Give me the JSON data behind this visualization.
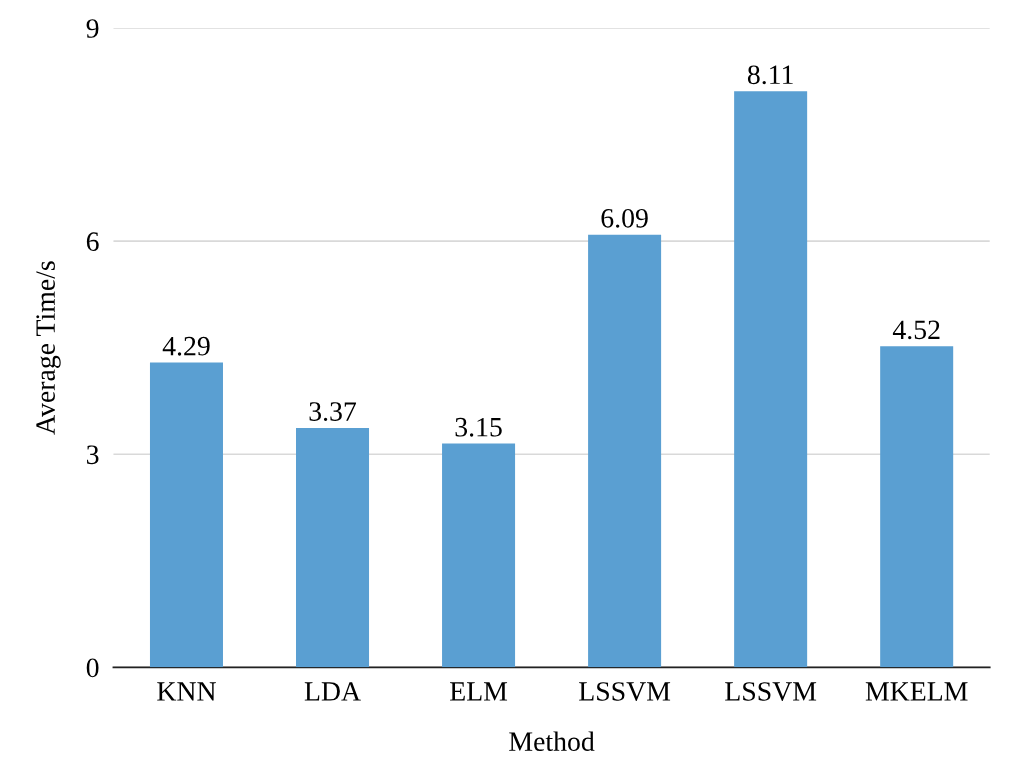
{
  "chart_data": {
    "type": "bar",
    "xlabel": "Method",
    "ylabel": "Average Time/s",
    "categories": [
      "KNN",
      "LDA",
      "ELM",
      "LSSVM",
      "LSSVM",
      "MKELM"
    ],
    "values": [
      4.29,
      3.37,
      3.15,
      6.09,
      8.11,
      4.52
    ],
    "color": "#5a9fd2",
    "ylim": [
      0,
      9
    ],
    "yticks": [
      0,
      3,
      6,
      9
    ],
    "grid": "y",
    "data_labels": true
  }
}
